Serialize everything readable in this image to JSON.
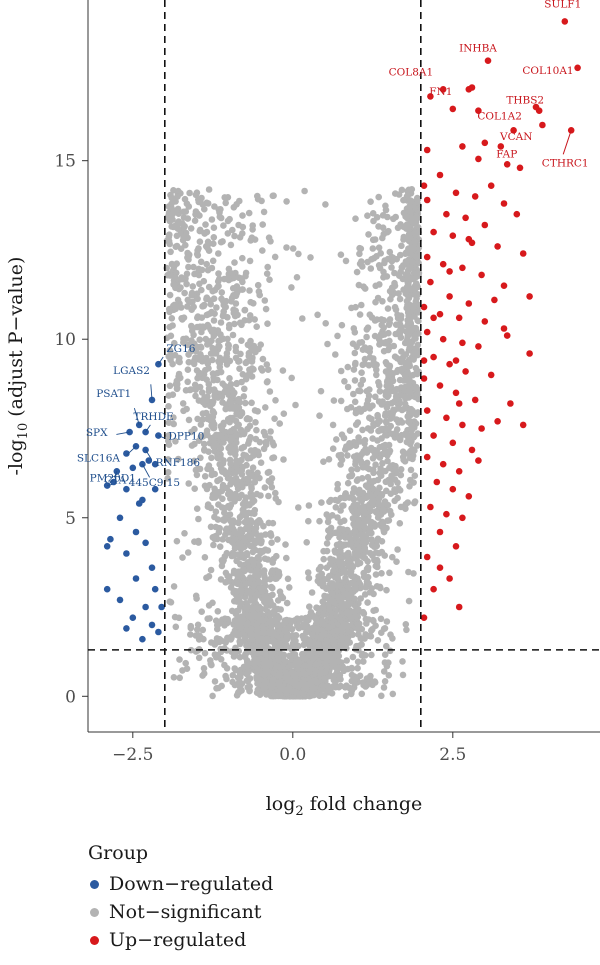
{
  "chart_data": {
    "type": "scatter",
    "title": "",
    "xlabel_main": "log",
    "xlabel_sub": "2",
    "xlabel_rest": " fold change",
    "ylabel_main": "-log",
    "ylabel_sub": "10",
    "ylabel_rest": " (adjust P−value)",
    "xlim": [
      -3.2,
      4.8
    ],
    "ylim": [
      -1.0,
      19.5
    ],
    "x_ticks": [
      -2.5,
      0.0,
      2.5
    ],
    "x_tick_labels": [
      "−2.5",
      "0.0",
      "2.5"
    ],
    "y_ticks": [
      0,
      5,
      10,
      15
    ],
    "y_tick_labels": [
      "0",
      "5",
      "10",
      "15"
    ],
    "thresholds": {
      "log2fc": [
        -2,
        2
      ],
      "neg_log10_p": 1.3
    },
    "colors": {
      "up": "#d7191c",
      "down": "#2b5aa0",
      "ns": "#b3b3b3"
    },
    "legend": {
      "title": "Group",
      "position": "bottom",
      "entries": [
        {
          "label": "Down−regulated",
          "color": "#2b5aa0"
        },
        {
          "label": "Not−significant",
          "color": "#b3b3b3"
        },
        {
          "label": "Up−regulated",
          "color": "#d7191c"
        }
      ]
    },
    "up_points": [
      [
        4.25,
        18.9
      ],
      [
        3.05,
        17.8
      ],
      [
        4.45,
        17.6
      ],
      [
        2.8,
        17.05
      ],
      [
        2.75,
        17.0
      ],
      [
        2.35,
        17.0
      ],
      [
        2.5,
        16.45
      ],
      [
        3.85,
        16.4
      ],
      [
        3.45,
        15.85
      ],
      [
        4.35,
        15.85
      ],
      [
        3.0,
        15.5
      ],
      [
        3.25,
        15.4
      ],
      [
        3.35,
        14.9
      ],
      [
        3.9,
        16.0
      ],
      [
        2.9,
        16.4
      ],
      [
        2.1,
        15.3
      ],
      [
        2.65,
        15.4
      ],
      [
        2.9,
        15.05
      ],
      [
        3.55,
        14.8
      ],
      [
        2.3,
        14.6
      ],
      [
        2.05,
        14.3
      ],
      [
        2.55,
        14.1
      ],
      [
        2.85,
        14.0
      ],
      [
        3.1,
        14.3
      ],
      [
        3.3,
        13.8
      ],
      [
        3.5,
        13.5
      ],
      [
        2.1,
        13.9
      ],
      [
        2.4,
        13.5
      ],
      [
        2.7,
        13.4
      ],
      [
        3.0,
        13.2
      ],
      [
        2.2,
        13.0
      ],
      [
        2.5,
        12.9
      ],
      [
        2.8,
        12.7
      ],
      [
        3.2,
        12.6
      ],
      [
        3.6,
        12.4
      ],
      [
        2.1,
        12.3
      ],
      [
        2.35,
        12.1
      ],
      [
        2.65,
        12.0
      ],
      [
        2.95,
        11.8
      ],
      [
        3.3,
        11.5
      ],
      [
        2.15,
        11.6
      ],
      [
        2.45,
        11.2
      ],
      [
        2.75,
        11.0
      ],
      [
        3.7,
        11.2
      ],
      [
        2.05,
        10.9
      ],
      [
        2.3,
        10.7
      ],
      [
        2.6,
        10.6
      ],
      [
        3.0,
        10.5
      ],
      [
        3.3,
        10.3
      ],
      [
        2.1,
        10.2
      ],
      [
        2.35,
        10.0
      ],
      [
        2.65,
        9.9
      ],
      [
        2.9,
        9.8
      ],
      [
        3.7,
        9.6
      ],
      [
        2.2,
        9.5
      ],
      [
        2.45,
        9.3
      ],
      [
        2.7,
        9.1
      ],
      [
        3.1,
        9.0
      ],
      [
        2.05,
        8.9
      ],
      [
        2.3,
        8.7
      ],
      [
        2.55,
        8.5
      ],
      [
        2.85,
        8.3
      ],
      [
        3.4,
        8.2
      ],
      [
        2.1,
        8.0
      ],
      [
        2.4,
        7.8
      ],
      [
        2.65,
        7.6
      ],
      [
        2.95,
        7.5
      ],
      [
        3.2,
        7.7
      ],
      [
        3.6,
        7.6
      ],
      [
        2.2,
        7.3
      ],
      [
        2.5,
        7.1
      ],
      [
        2.8,
        6.9
      ],
      [
        2.1,
        6.7
      ],
      [
        2.35,
        6.5
      ],
      [
        2.6,
        6.3
      ],
      [
        2.9,
        6.6
      ],
      [
        2.25,
        6.0
      ],
      [
        2.5,
        5.8
      ],
      [
        2.75,
        5.6
      ],
      [
        2.15,
        5.3
      ],
      [
        2.4,
        5.1
      ],
      [
        2.65,
        5.0
      ],
      [
        2.3,
        4.6
      ],
      [
        2.55,
        4.2
      ],
      [
        2.3,
        3.6
      ],
      [
        2.45,
        3.3
      ],
      [
        2.1,
        3.9
      ],
      [
        2.2,
        3.0
      ],
      [
        2.6,
        2.5
      ],
      [
        2.05,
        2.2
      ],
      [
        3.35,
        10.1
      ],
      [
        3.15,
        11.1
      ],
      [
        2.55,
        9.4
      ],
      [
        2.75,
        12.8
      ],
      [
        2.2,
        10.6
      ],
      [
        2.45,
        11.9
      ],
      [
        2.05,
        9.4
      ],
      [
        2.6,
        8.2
      ],
      [
        3.8,
        16.5
      ],
      [
        2.15,
        16.8
      ]
    ],
    "down_points": [
      [
        -2.1,
        9.3
      ],
      [
        -2.2,
        8.3
      ],
      [
        -2.4,
        7.6
      ],
      [
        -2.55,
        7.4
      ],
      [
        -2.3,
        7.4
      ],
      [
        -2.1,
        7.3
      ],
      [
        -2.45,
        7.0
      ],
      [
        -2.3,
        6.9
      ],
      [
        -2.6,
        6.8
      ],
      [
        -2.25,
        6.6
      ],
      [
        -2.35,
        6.5
      ],
      [
        -2.5,
        6.4
      ],
      [
        -2.15,
        6.5
      ],
      [
        -2.75,
        6.3
      ],
      [
        -2.8,
        6.0
      ],
      [
        -2.9,
        5.9
      ],
      [
        -2.6,
        5.8
      ],
      [
        -2.4,
        5.4
      ],
      [
        -2.15,
        5.8
      ],
      [
        -2.35,
        5.5
      ],
      [
        -2.7,
        5.0
      ],
      [
        -2.45,
        4.6
      ],
      [
        -2.85,
        4.4
      ],
      [
        -2.9,
        4.2
      ],
      [
        -2.3,
        4.3
      ],
      [
        -2.6,
        4.0
      ],
      [
        -2.2,
        3.6
      ],
      [
        -2.45,
        3.3
      ],
      [
        -2.9,
        3.0
      ],
      [
        -2.7,
        2.7
      ],
      [
        -2.3,
        2.5
      ],
      [
        -2.5,
        2.2
      ],
      [
        -2.2,
        2.0
      ],
      [
        -2.6,
        1.9
      ],
      [
        -2.1,
        1.8
      ],
      [
        -2.35,
        1.6
      ],
      [
        -2.05,
        2.5
      ],
      [
        -2.15,
        3.0
      ]
    ],
    "labels_up": [
      {
        "gene": "SULF1",
        "x": 4.25,
        "y": 18.9
      },
      {
        "gene": "INHBA",
        "x": 3.05,
        "y": 17.8
      },
      {
        "gene": "COL10A1",
        "x": 4.45,
        "y": 17.6
      },
      {
        "gene": "COL8A1",
        "x": 2.35,
        "y": 17.0
      },
      {
        "gene": "FN1",
        "x": 2.5,
        "y": 16.45
      },
      {
        "gene": "THBS2",
        "x": 3.85,
        "y": 16.4
      },
      {
        "gene": "COL1A2",
        "x": 3.45,
        "y": 15.85
      },
      {
        "gene": "VCAN",
        "x": 3.9,
        "y": 16.0
      },
      {
        "gene": "FAP",
        "x": 3.25,
        "y": 15.4
      },
      {
        "gene": "CTHRC1",
        "x": 4.35,
        "y": 15.85
      }
    ],
    "labels_down": [
      {
        "gene": "LGAS2",
        "x": -2.2,
        "y": 8.3
      },
      {
        "gene": "ZG16",
        "x": -2.1,
        "y": 9.3
      },
      {
        "gene": "PSAT1",
        "x": -2.4,
        "y": 7.6
      },
      {
        "gene": "TRHDE",
        "x": -2.3,
        "y": 7.4
      },
      {
        "gene": "SPX",
        "x": -2.55,
        "y": 7.4
      },
      {
        "gene": "DPP10",
        "x": -2.1,
        "y": 7.3
      },
      {
        "gene": "SLC16A",
        "x": -2.45,
        "y": 7.0
      },
      {
        "gene": "RNF186",
        "x": -2.3,
        "y": 6.9
      },
      {
        "gene": "PM20D1",
        "x": -2.75,
        "y": 6.3
      },
      {
        "gene": "CTA",
        "x": -2.9,
        "y": 5.9
      },
      {
        "gene": "445C9.15",
        "x": -2.35,
        "y": 6.5
      }
    ]
  }
}
